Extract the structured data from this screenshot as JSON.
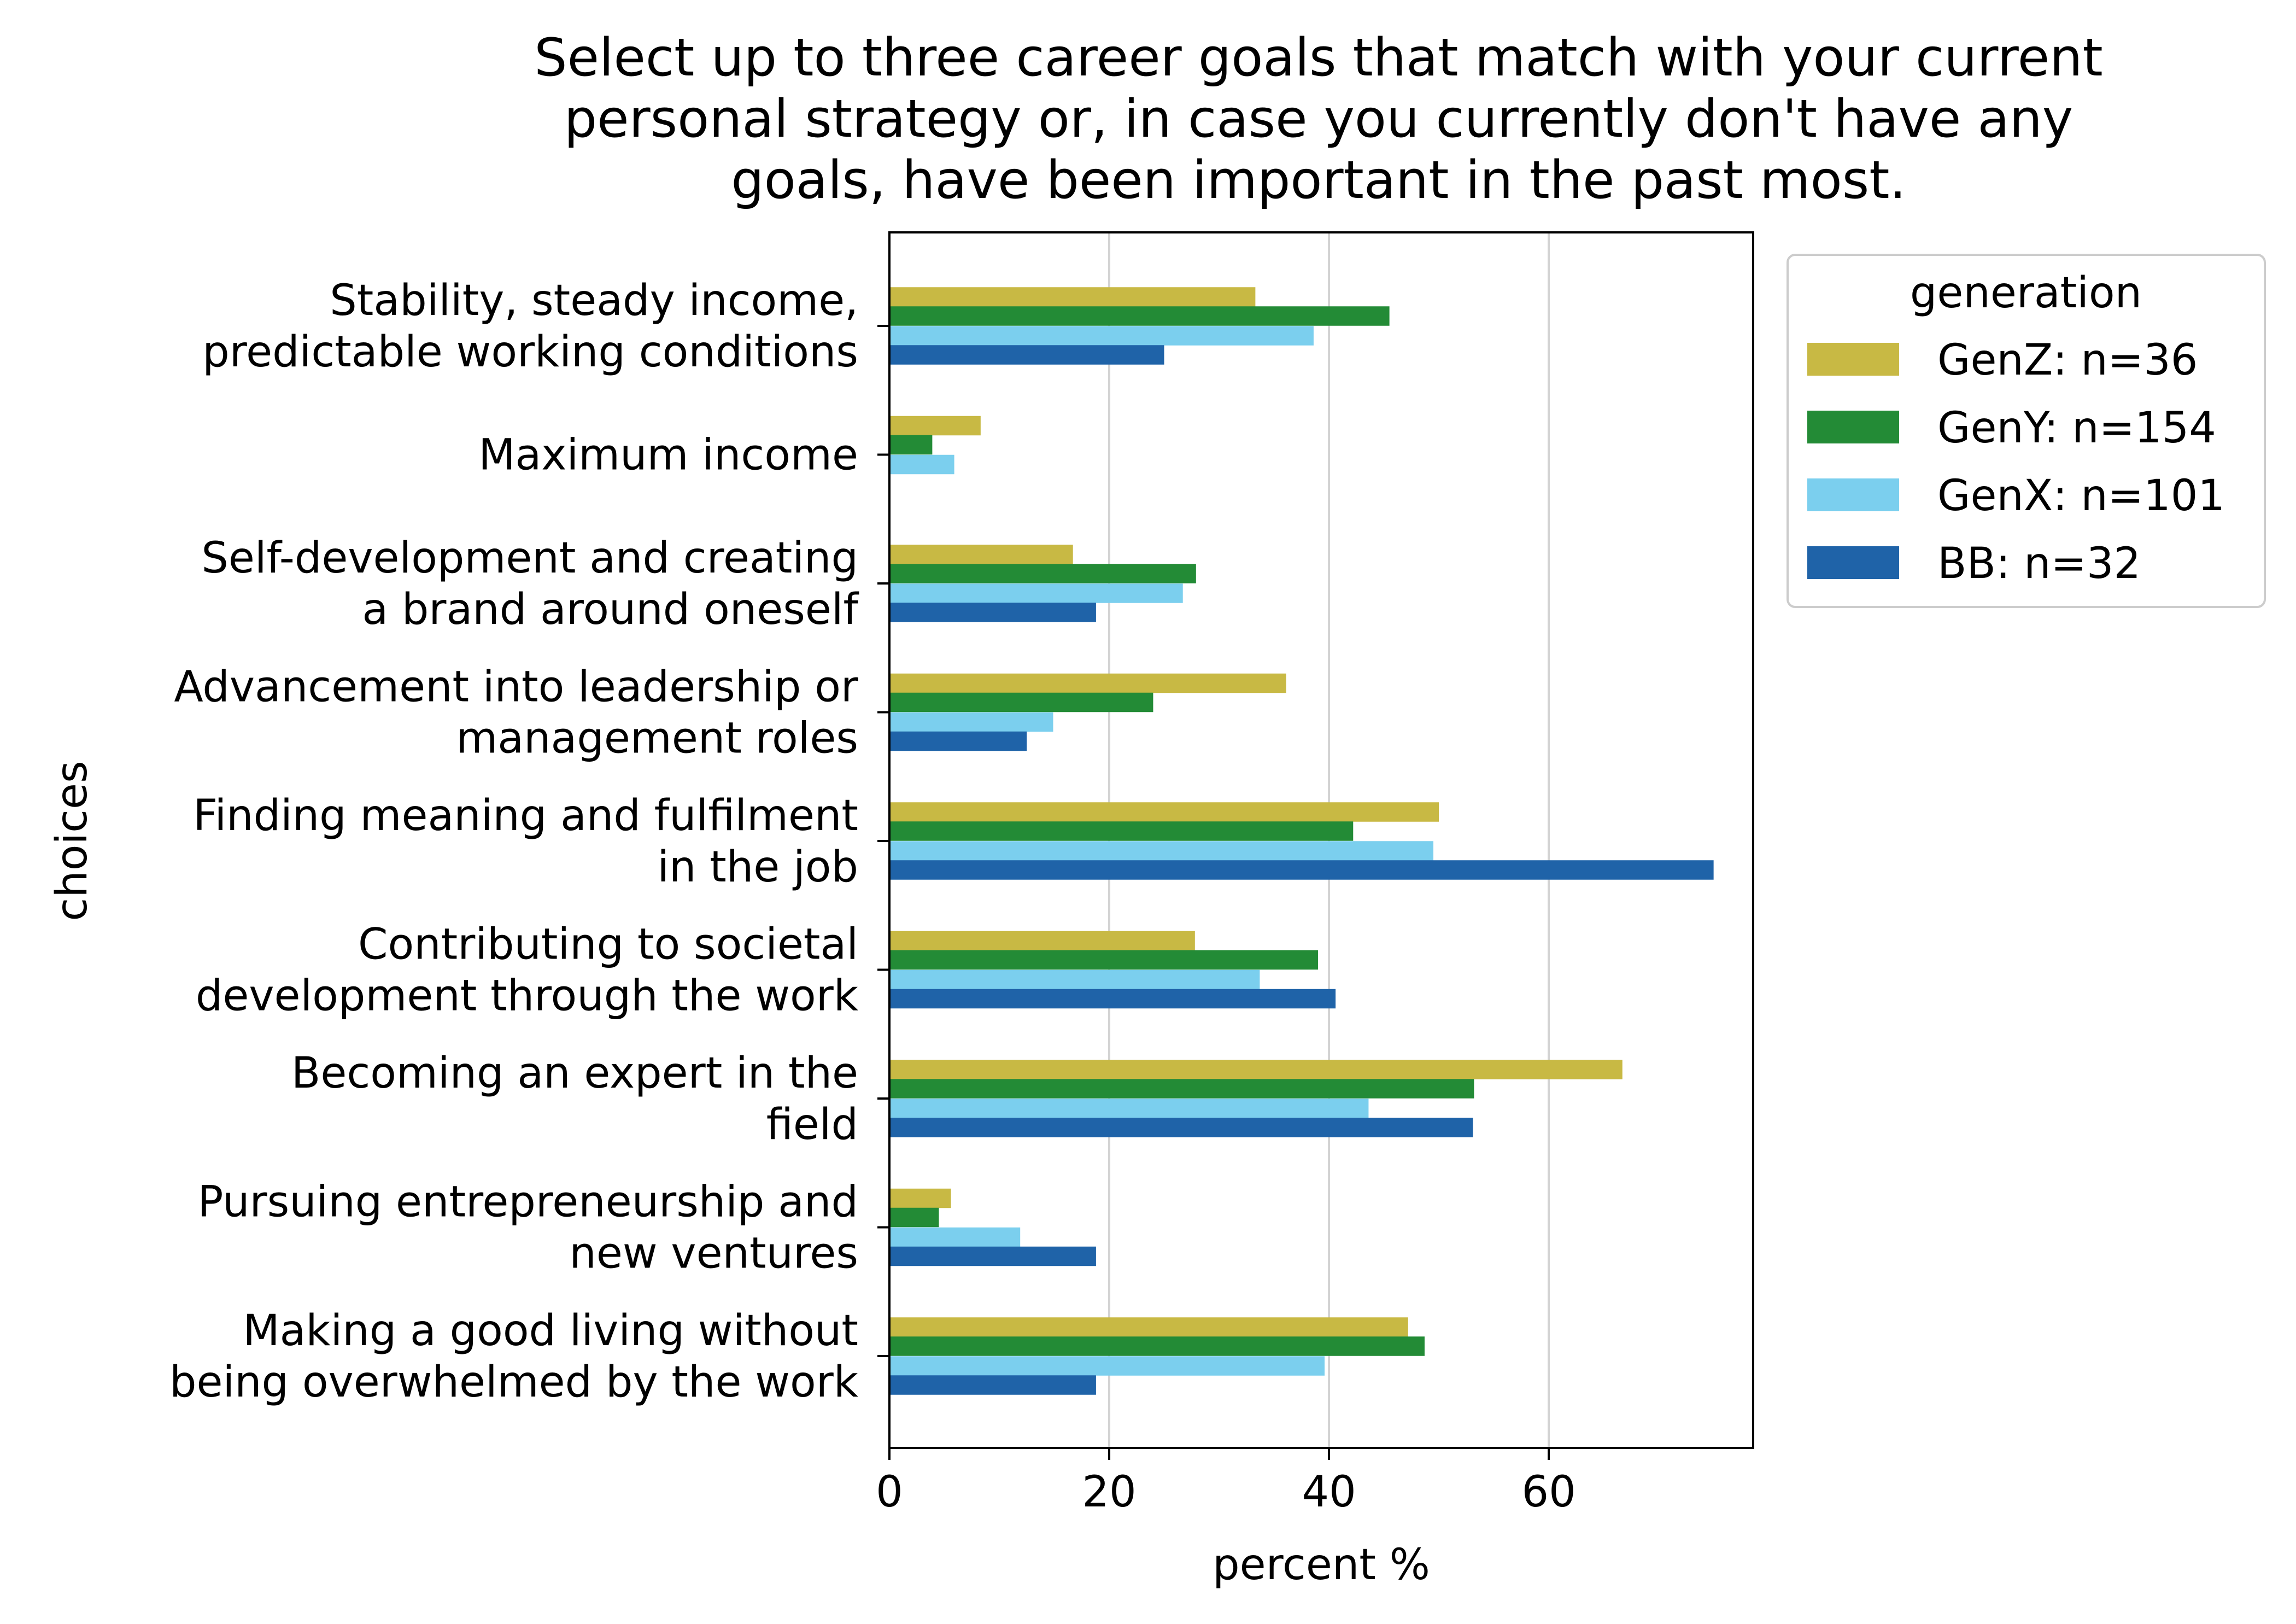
{
  "chart_data": {
    "type": "bar",
    "orientation": "horizontal",
    "title_lines": [
      "Select up to three career goals that match with your current",
      "personal strategy or, in case you currently don't have any",
      "goals, have been important in the past most."
    ],
    "xlabel": "percent %",
    "ylabel": "choices",
    "xlim": [
      0,
      78.6
    ],
    "xticks": [
      0,
      20,
      40,
      60
    ],
    "grid": "x",
    "legend": {
      "title": "generation",
      "placement": "outside-top-right"
    },
    "categories": [
      [
        "Stability, steady income,",
        "predictable working conditions"
      ],
      [
        "Maximum income"
      ],
      [
        "Self-development and creating",
        "a brand around oneself"
      ],
      [
        "Advancement into leadership or",
        "management roles"
      ],
      [
        "Finding meaning and fulfilment",
        "in the job"
      ],
      [
        "Contributing to societal",
        "development through the work"
      ],
      [
        "Becoming an expert in the",
        "field"
      ],
      [
        "Pursuing entrepreneurship and",
        "new ventures"
      ],
      [
        "Making a good living without",
        "being overwhelmed by the work"
      ]
    ],
    "series": [
      {
        "name": "GenZ: n=36",
        "color": "#c8b944",
        "values": [
          33.3,
          8.3,
          16.7,
          36.1,
          50.0,
          27.8,
          66.7,
          5.6,
          47.2
        ]
      },
      {
        "name": "GenY: n=154",
        "color": "#238b36",
        "values": [
          45.5,
          3.9,
          27.9,
          24.0,
          42.2,
          39.0,
          53.2,
          4.5,
          48.7
        ]
      },
      {
        "name": "GenX: n=101",
        "color": "#7bcfee",
        "values": [
          38.6,
          5.9,
          26.7,
          14.9,
          49.5,
          33.7,
          43.6,
          11.9,
          39.6
        ]
      },
      {
        "name": "BB: n=32",
        "color": "#1f63a8",
        "values": [
          25.0,
          0.0,
          18.8,
          12.5,
          75.0,
          40.6,
          53.1,
          18.8,
          18.8
        ]
      }
    ]
  }
}
